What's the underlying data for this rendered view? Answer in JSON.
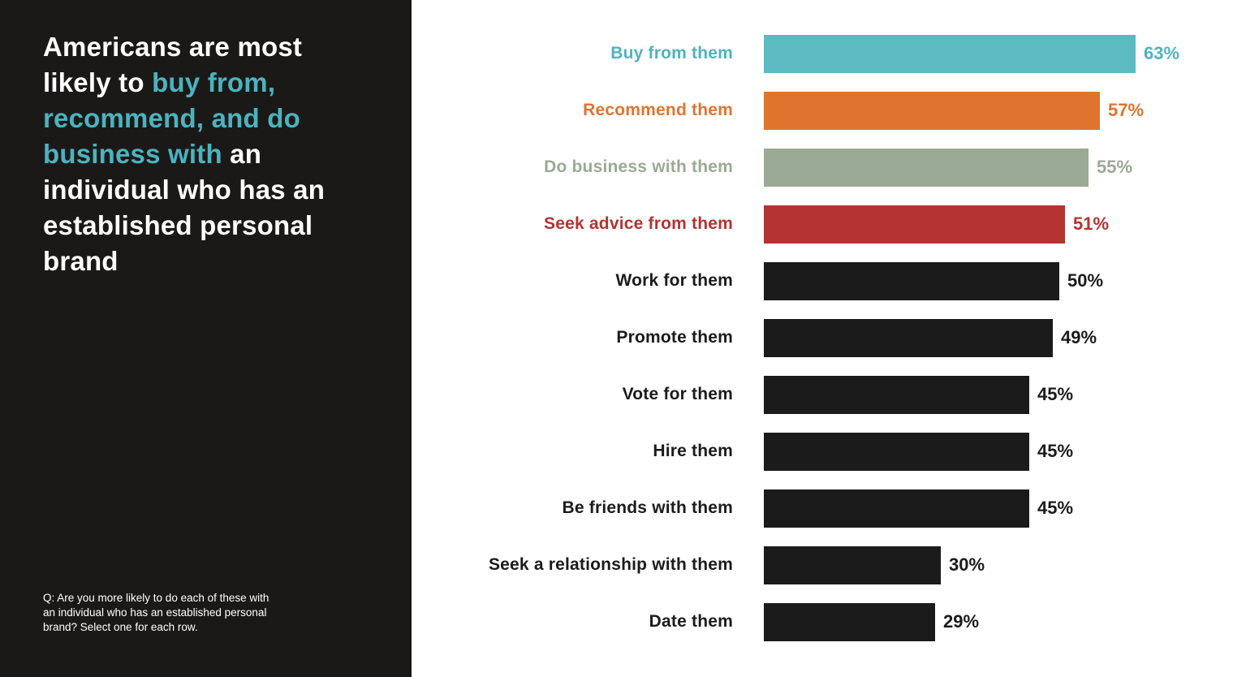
{
  "sidebar": {
    "bg_color": "#1b1918",
    "accent_color": "#4bb3bf",
    "title_segments": [
      {
        "text": "Americans are most likely to ",
        "color": "#ffffff"
      },
      {
        "text": "buy from, recommend, and do business with",
        "color": "#4bb3bf"
      },
      {
        "text": " an individual who has an established personal brand",
        "color": "#ffffff"
      }
    ],
    "footnote": "Q: Are you more likely to do each of these with an individual who has an established personal brand? Select one for each row."
  },
  "chart_data": {
    "type": "bar",
    "orientation": "horizontal",
    "title": "",
    "xlabel": "",
    "ylabel": "",
    "xlim": [
      0,
      63
    ],
    "grid": false,
    "legend": "none",
    "axis_ticks": "none",
    "categories": [
      "Buy from them",
      "Recommend them",
      "Do business with them",
      "Seek advice from them",
      "Work for them",
      "Promote them",
      "Vote for them",
      "Hire them",
      "Be friends with them",
      "Seek a relationship with them",
      "Date them"
    ],
    "values": [
      63,
      57,
      55,
      51,
      50,
      49,
      45,
      45,
      45,
      30,
      29
    ],
    "value_labels": [
      "63%",
      "57%",
      "55%",
      "51%",
      "50%",
      "49%",
      "45%",
      "45%",
      "45%",
      "30%",
      "29%"
    ],
    "bar_colors": [
      "#5cbac2",
      "#e0742f",
      "#9aaa94",
      "#b53331",
      "#1b1b1b",
      "#1b1b1b",
      "#1b1b1b",
      "#1b1b1b",
      "#1b1b1b",
      "#1b1b1b",
      "#1b1b1b"
    ],
    "label_colors": [
      "#4fb3be",
      "#e0742f",
      "#9aaa94",
      "#b53331",
      "#1b1b1b",
      "#1b1b1b",
      "#1b1b1b",
      "#1b1b1b",
      "#1b1b1b",
      "#1b1b1b",
      "#1b1b1b"
    ]
  }
}
